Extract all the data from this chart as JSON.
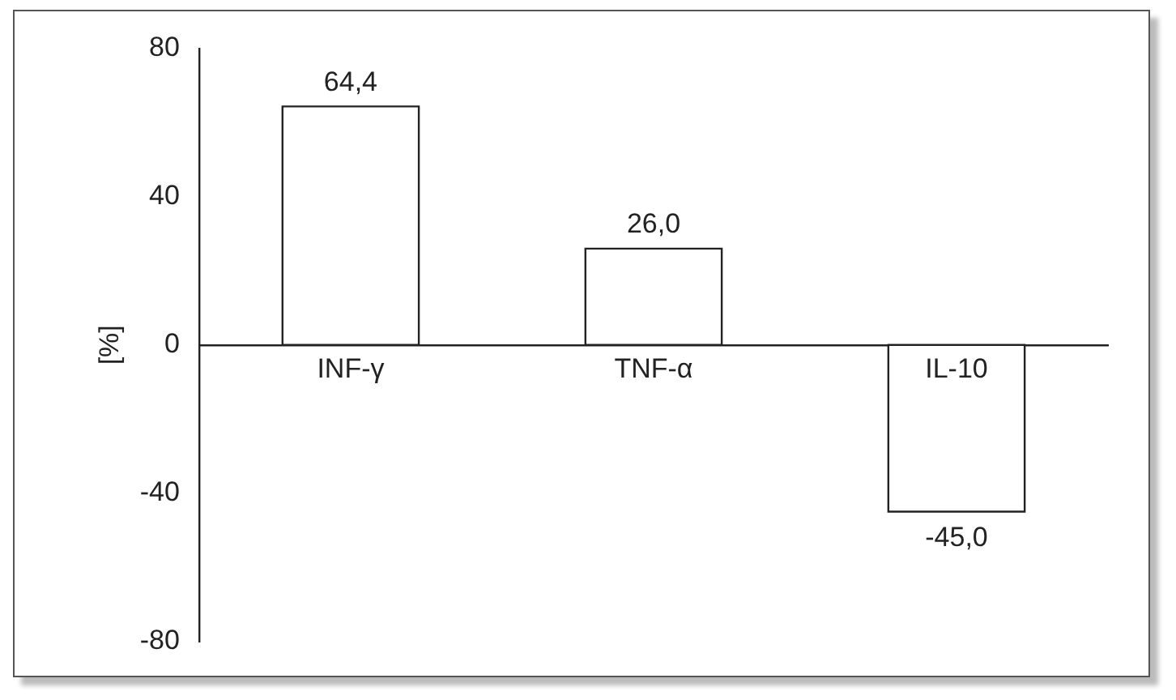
{
  "chart_data": {
    "type": "bar",
    "ylabel": "[%]",
    "categories": [
      "INF-γ",
      "TNF-α",
      "IL-10"
    ],
    "values": [
      64.4,
      26.0,
      -45.0
    ],
    "value_labels": [
      "64,4",
      "26,0",
      "-45,0"
    ],
    "color": "#ffffff",
    "ylim": [
      -80,
      80
    ],
    "yticks": [
      -80,
      -40,
      0,
      40,
      80
    ],
    "grid": false,
    "legend": false
  }
}
